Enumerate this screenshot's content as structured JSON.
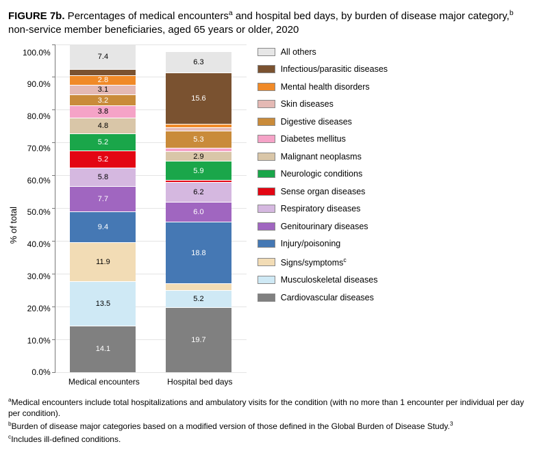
{
  "title": {
    "prefix": "FIGURE 7b.",
    "text_before_a": " Percentages of medical encounters",
    "sup_a": "a",
    "text_mid": " and hospital bed days, by burden of disease major category,",
    "sup_b": "b",
    "text_after": " non-service member beneficiaries, aged 65 years or older, 2020"
  },
  "y_axis": {
    "label": "% of total",
    "ticks": [
      "100.0%",
      "90.0%",
      "80.0%",
      "70.0%",
      "60.0%",
      "50.0%",
      "40.0%",
      "30.0%",
      "20.0%",
      "10.0%",
      "0.0%"
    ],
    "max": 100
  },
  "categories": [
    {
      "key": "cardio",
      "label": "Cardiovascular diseases",
      "color": "#808080",
      "text": "#ffffff"
    },
    {
      "key": "musculo",
      "label": "Musculoskeletal diseases",
      "color": "#cfe9f5",
      "text": "#000000"
    },
    {
      "key": "signs",
      "label": "Signs/symptoms",
      "sup": "c",
      "color": "#f2dcb5",
      "text": "#000000"
    },
    {
      "key": "injury",
      "label": "Injury/poisoning",
      "color": "#4578b4",
      "text": "#ffffff"
    },
    {
      "key": "genito",
      "label": "Genitourinary diseases",
      "color": "#a066c0",
      "text": "#ffffff"
    },
    {
      "key": "resp",
      "label": "Respiratory diseases",
      "color": "#d5b8e0",
      "text": "#000000"
    },
    {
      "key": "sense",
      "label": "Sense organ diseases",
      "color": "#e30613",
      "text": "#ffffff"
    },
    {
      "key": "neuro",
      "label": "Neurologic conditions",
      "color": "#1aa64a",
      "text": "#ffffff"
    },
    {
      "key": "malig",
      "label": "Malignant neoplasms",
      "color": "#d9c6a8",
      "text": "#000000"
    },
    {
      "key": "diab",
      "label": "Diabetes mellitus",
      "color": "#f5a3c7",
      "text": "#000000"
    },
    {
      "key": "digest",
      "label": "Digestive diseases",
      "color": "#c98b3a",
      "text": "#ffffff"
    },
    {
      "key": "skin",
      "label": "Skin diseases",
      "color": "#e4b9b4",
      "text": "#000000"
    },
    {
      "key": "mental",
      "label": "Mental health disorders",
      "color": "#f08a28",
      "text": "#ffffff"
    },
    {
      "key": "infect",
      "label": "Infectious/parasitic diseases",
      "color": "#7a5230",
      "text": "#ffffff"
    },
    {
      "key": "other",
      "label": "All others",
      "color": "#e6e6e6",
      "text": "#000000"
    }
  ],
  "bars": [
    {
      "label": "Medical encounters",
      "values": {
        "cardio": 14.1,
        "musculo": 13.5,
        "signs": 11.9,
        "injury": 9.4,
        "genito": 7.7,
        "resp": 5.8,
        "sense": 5.2,
        "neuro": 5.2,
        "malig": 4.8,
        "diab": 3.8,
        "digest": 3.2,
        "skin": 3.1,
        "mental": 2.8,
        "infect": 1.9,
        "other": 7.4
      },
      "show_labels": {
        "cardio": "14.1",
        "musculo": "13.5",
        "signs": "11.9",
        "injury": "9.4",
        "genito": "7.7",
        "resp": "5.8",
        "sense": "5.2",
        "neuro": "5.2",
        "malig": "4.8",
        "diab": "3.8",
        "digest": "3.2",
        "skin": "3.1",
        "mental": "2.8",
        "other": "7.4"
      }
    },
    {
      "label": "Hospital bed days",
      "values": {
        "cardio": 19.7,
        "musculo": 5.2,
        "signs": 2.1,
        "injury": 18.8,
        "genito": 6.0,
        "resp": 6.2,
        "sense": 0.5,
        "neuro": 5.9,
        "malig": 2.9,
        "diab": 1.0,
        "digest": 5.3,
        "skin": 1.0,
        "mental": 1.1,
        "infect": 15.6,
        "other": 6.3
      },
      "show_labels": {
        "cardio": "19.7",
        "musculo": "5.2",
        "injury": "18.8",
        "genito": "6.0",
        "resp": "6.2",
        "neuro": "5.9",
        "malig": "2.9",
        "digest": "5.3",
        "infect": "15.6",
        "other": "6.3"
      }
    }
  ],
  "footnotes": {
    "a_sup": "a",
    "a": "Medical encounters include total hospitalizations and ambulatory visits for the condition (with no more than 1 encounter per individual per day per condition).",
    "b_sup": "b",
    "b_pre": "Burden of disease major categories based on a modified version of those defined in the Global Burden of Disease Study.",
    "b_ref": "3",
    "c_sup": "c",
    "c": "Includes ill-defined conditions."
  }
}
